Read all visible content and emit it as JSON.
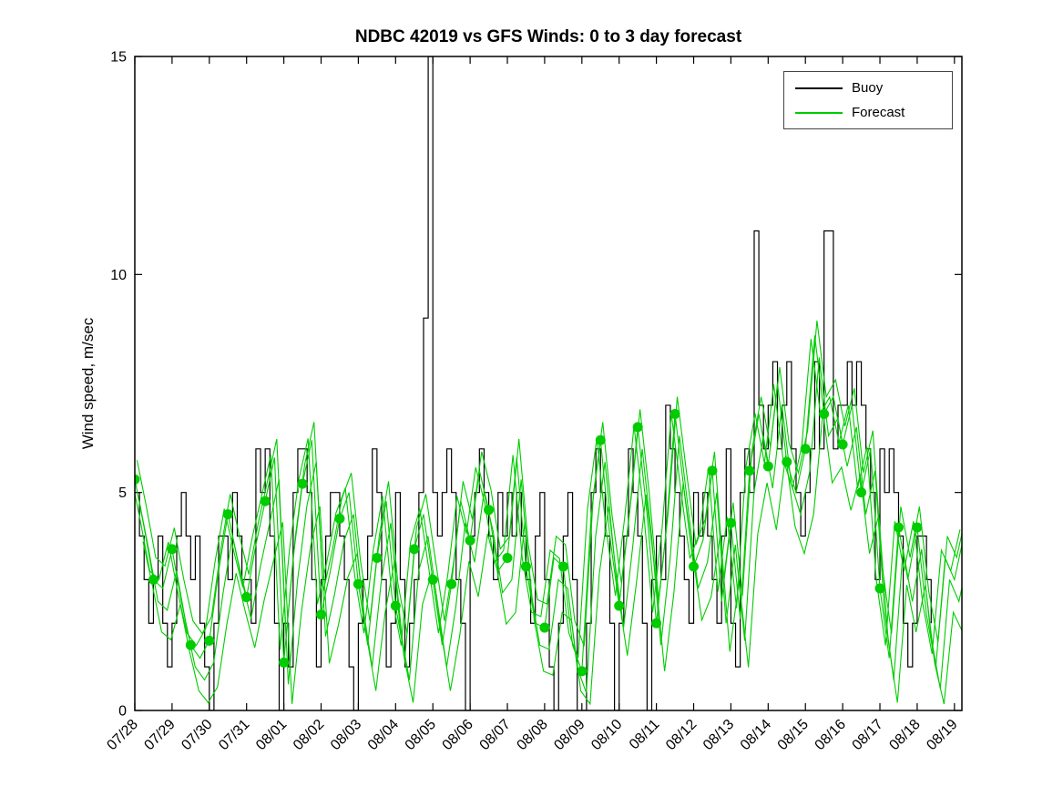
{
  "figure": {
    "background": "#ffffff"
  },
  "chart_data": {
    "type": "line",
    "title": "NDBC 42019 vs GFS Winds: 0 to 3 day forecast",
    "ylabel": "Wind speed, m/sec",
    "xlabel": "",
    "ylim": [
      0,
      15
    ],
    "yticks": [
      0,
      5,
      10,
      15
    ],
    "xlim_days": [
      0,
      22.2
    ],
    "x_tick_labels": [
      "07/28",
      "07/29",
      "07/30",
      "07/31",
      "08/01",
      "08/02",
      "08/03",
      "08/04",
      "08/05",
      "08/06",
      "08/07",
      "08/08",
      "08/09",
      "08/10",
      "08/11",
      "08/12",
      "08/13",
      "08/14",
      "08/15",
      "08/16",
      "08/17",
      "08/18",
      "08/19"
    ],
    "grid": false,
    "legend_position": "top-right",
    "series": [
      {
        "name": "Buoy",
        "color": "#000000",
        "type": "step",
        "start_day": 0,
        "dt_hours": 3,
        "values": [
          5,
          4,
          3,
          2,
          3,
          4,
          2,
          1,
          2,
          4,
          5,
          4,
          3,
          4,
          2,
          1,
          0,
          2,
          4,
          4,
          3,
          5,
          4,
          3,
          3,
          2,
          6,
          5,
          6,
          4,
          2,
          0,
          2,
          1,
          5,
          6,
          6,
          5,
          3,
          1,
          3,
          4,
          5,
          5,
          4,
          3,
          1,
          0,
          2,
          3,
          4,
          6,
          5,
          3,
          1,
          2,
          5,
          3,
          1,
          2,
          3,
          5,
          9,
          15,
          5,
          4,
          5,
          6,
          5,
          3,
          2,
          0,
          4,
          5,
          6,
          5,
          4,
          3,
          5,
          4,
          5,
          4,
          5,
          4,
          3,
          2,
          4,
          5,
          3,
          1,
          0,
          2,
          4,
          5,
          3,
          0,
          0,
          2,
          5,
          6,
          5,
          4,
          2,
          0,
          2,
          4,
          6,
          5,
          4,
          2,
          0,
          3,
          4,
          3,
          7,
          6,
          5,
          4,
          3,
          2,
          5,
          4,
          5,
          4,
          3,
          2,
          4,
          6,
          2,
          1,
          5,
          6,
          5,
          11,
          7,
          6,
          7,
          8,
          6,
          7,
          8,
          6,
          5,
          4,
          5,
          6,
          8,
          6,
          11,
          11,
          6,
          7,
          7,
          8,
          7,
          8,
          7,
          6,
          5,
          3,
          6,
          5,
          6,
          5,
          4,
          2,
          1,
          2,
          4,
          4,
          3,
          2
        ]
      },
      {
        "name": "Forecast",
        "color": "#00cc00",
        "type": "line",
        "start_day": 0,
        "dt_hours": 6,
        "values": [
          5.3,
          4.2,
          3.0,
          2.8,
          3.7,
          2.5,
          1.5,
          1.2,
          1.6,
          3.2,
          4.5,
          3.5,
          2.6,
          3.8,
          4.8,
          5.8,
          1.1,
          3.5,
          5.2,
          6.2,
          2.2,
          3.2,
          4.4,
          5.0,
          2.9,
          1.5,
          3.5,
          4.8,
          2.4,
          1.2,
          3.7,
          4.5,
          3.0,
          1.5,
          2.9,
          4.8,
          3.9,
          5.5,
          4.6,
          3.2,
          3.5,
          5.8,
          3.3,
          2.0,
          1.9,
          3.5,
          3.3,
          1.5,
          0.9,
          4.5,
          6.2,
          4.0,
          2.4,
          4.3,
          6.5,
          4.5,
          2.0,
          4.0,
          6.8,
          5.0,
          3.3,
          3.9,
          5.5,
          2.5,
          4.3,
          2.1,
          5.5,
          6.8,
          5.6,
          7.5,
          5.7,
          5.0,
          6.0,
          8.6,
          6.8,
          7.2,
          6.1,
          7.0,
          5.0,
          6.0,
          2.8,
          1.2,
          4.2,
          3.0,
          4.2,
          2.2,
          1.0,
          3.5,
          3.0,
          4.0
        ],
        "runs": [
          {
            "shift_days": 0,
            "offset": 0,
            "scale": 1
          },
          {
            "shift_days": 0.12,
            "offset": -0.5,
            "scale": 1
          },
          {
            "shift_days": -0.1,
            "offset": 0.35,
            "scale": 0.95
          },
          {
            "shift_days": 0.22,
            "offset": -0.9,
            "scale": 0.9
          },
          {
            "shift_days": 0.06,
            "offset": 0.6,
            "scale": 0.97
          }
        ],
        "marker_every": 2,
        "marker_last_index": 84,
        "marker_radius": 5.5,
        "marker_color": "#00cc00"
      }
    ]
  }
}
